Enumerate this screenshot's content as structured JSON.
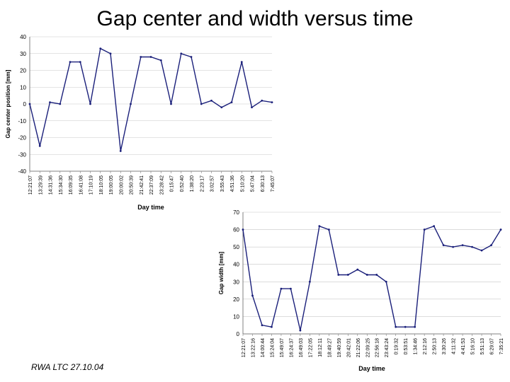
{
  "slide": {
    "title": "Gap center and width versus time",
    "footer": "RWA LTC 27.10.04"
  },
  "colors": {
    "series": "#1a1f7a",
    "axis": "#808080",
    "grid": "#c8c8c8"
  },
  "chart_data": [
    {
      "type": "line",
      "ylabel": "Gap center position [mm]",
      "xlabel": "Day time",
      "ylim": [
        -40,
        40
      ],
      "yticks": [
        40,
        30,
        20,
        10,
        0,
        -10,
        -20,
        -30,
        -40
      ],
      "grid": true,
      "categories": [
        "12:21:07",
        "13:29:39",
        "14:31:36",
        "15:34:30",
        "16:09:35",
        "16:41:08",
        "17:10:19",
        "18:10:05",
        "19:00:05",
        "20:00:02",
        "20:50:39",
        "21:42:41",
        "22:37:09",
        "23:28:42",
        "0:15:47",
        "0:52:40",
        "1:38:20",
        "2:23:17",
        "3:02:57",
        "3:55:43",
        "4:51:36",
        "5:10:20",
        "5:47:04",
        "6:30:13",
        "7:45:07"
      ],
      "series": [
        {
          "values": [
            0,
            -25,
            1,
            0,
            25,
            25,
            0,
            33,
            30,
            -28,
            0,
            28,
            28,
            26,
            0,
            30,
            28,
            0,
            2,
            -2,
            1,
            25,
            -2,
            2,
            1
          ]
        }
      ]
    },
    {
      "type": "line",
      "ylabel": "Gap width [mm]",
      "xlabel": "Day time",
      "ylim": [
        0,
        70
      ],
      "yticks": [
        70,
        60,
        50,
        40,
        30,
        20,
        10,
        0
      ],
      "grid": true,
      "categories": [
        "12:21:07",
        "13:22:16",
        "14:00:44",
        "15:24:04",
        "15:49:07",
        "16:24:37",
        "16:49:03",
        "17:22:05",
        "18:12:11",
        "18:49:27",
        "19:40:59",
        "20:42:01",
        "21:22:06",
        "22:09:25",
        "22:56:18",
        "23:43:24",
        "0:19:32",
        "0:53:51",
        "1:34:46",
        "2:12:16",
        "2:50:13",
        "3:30:26",
        "4:11:32",
        "4:41:53",
        "5:16:10",
        "5:51:13",
        "6:29:07",
        "7:35:21"
      ],
      "series": [
        {
          "values": [
            60,
            22,
            5,
            4,
            26,
            26,
            2,
            30,
            62,
            60,
            34,
            34,
            37,
            34,
            34,
            30,
            4,
            4,
            4,
            60,
            62,
            51,
            50,
            51,
            50,
            48,
            51,
            60
          ]
        }
      ]
    }
  ]
}
